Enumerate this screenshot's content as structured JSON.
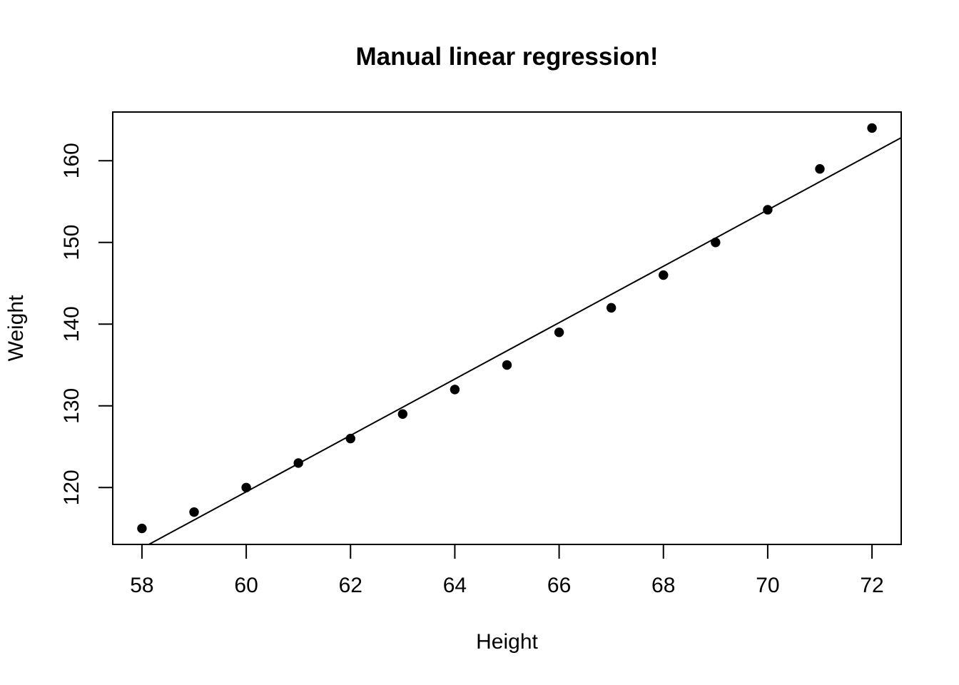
{
  "page": {
    "background_color": "#ffffff"
  },
  "chart_data": {
    "type": "scatter",
    "title": "Manual linear regression!",
    "xlabel": "Height",
    "ylabel": "Weight",
    "x": [
      58,
      59,
      60,
      61,
      62,
      63,
      64,
      65,
      66,
      67,
      68,
      69,
      70,
      71,
      72
    ],
    "y": [
      115,
      117,
      120,
      123,
      126,
      129,
      132,
      135,
      139,
      142,
      146,
      150,
      154,
      159,
      164
    ],
    "xticks": [
      58,
      60,
      62,
      64,
      66,
      68,
      70,
      72
    ],
    "yticks": [
      120,
      130,
      140,
      150,
      160
    ],
    "xlim": [
      57.44,
      72.56
    ],
    "ylim": [
      113.04,
      165.96
    ],
    "grid": false,
    "legend": "none",
    "regression_line": {
      "slope": 3.45,
      "intercept": -87.51667
    },
    "point_color": "#000000",
    "line_color": "#000000",
    "axis_color": "#000000",
    "background_color": "#ffffff"
  }
}
